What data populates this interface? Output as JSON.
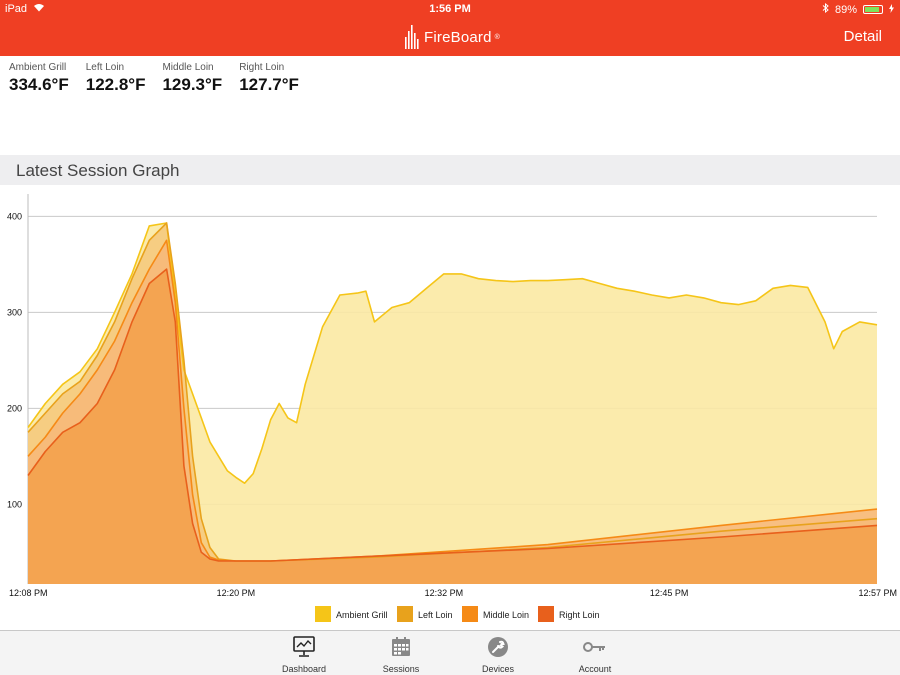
{
  "status_bar": {
    "device": "iPad",
    "time": "1:56 PM",
    "battery": "89%"
  },
  "header": {
    "brand": "FireBoard",
    "trademark": "®",
    "detail_label": "Detail",
    "color": "#ef3f23"
  },
  "probes": [
    {
      "label": "Ambient Grill",
      "value": "334.6°F"
    },
    {
      "label": "Left Loin",
      "value": "122.8°F"
    },
    {
      "label": "Middle Loin",
      "value": "129.3°F"
    },
    {
      "label": "Right Loin",
      "value": "127.7°F"
    }
  ],
  "section": {
    "title": "Latest Session Graph"
  },
  "chart_data": {
    "type": "area",
    "title": "",
    "xlabel": "",
    "ylabel": "",
    "x_unit": "minutes after 12:08 PM",
    "x_tick_labels": [
      "12:08 PM",
      "12:20 PM",
      "12:32 PM",
      "12:45 PM",
      "12:57 PM"
    ],
    "x_tick_values": [
      0,
      12,
      24,
      37,
      49
    ],
    "xlim": [
      0,
      49
    ],
    "y_ticks": [
      100,
      200,
      300,
      400
    ],
    "ylim": [
      17,
      417
    ],
    "grid": true,
    "legend_position": "bottom",
    "series": [
      {
        "name": "Ambient Grill",
        "color": "#f5c518",
        "fill": "#fbe9a3",
        "x": [
          0,
          1,
          2,
          3,
          4,
          5,
          6,
          7,
          8,
          9,
          10,
          10.5,
          11,
          11.5,
          12,
          12.5,
          13,
          13.5,
          14,
          14.5,
          15,
          15.5,
          16,
          17,
          18,
          19,
          19.5,
          20,
          21,
          22,
          23,
          24,
          25,
          26,
          27,
          28,
          29,
          30,
          31,
          32,
          33,
          34,
          35,
          36,
          37,
          38,
          39,
          40,
          41,
          42,
          43,
          44,
          45,
          46,
          46.5,
          47,
          48,
          49
        ],
        "y": [
          180,
          205,
          225,
          238,
          262,
          300,
          340,
          390,
          393,
          240,
          190,
          165,
          150,
          135,
          128,
          122,
          132,
          158,
          188,
          205,
          190,
          185,
          225,
          285,
          318,
          320,
          322,
          290,
          305,
          310,
          325,
          340,
          340,
          335,
          333,
          332,
          333,
          333,
          334,
          335,
          330,
          325,
          322,
          318,
          315,
          318,
          315,
          310,
          308,
          312,
          325,
          328,
          326,
          290,
          262,
          280,
          290,
          287
        ]
      },
      {
        "name": "Left Loin",
        "color": "#e8a21c",
        "fill": "#f5c87a",
        "x": [
          0,
          1,
          2,
          3,
          4,
          5,
          6,
          7,
          8,
          8.5,
          9,
          9.5,
          10,
          10.5,
          11,
          12,
          14,
          20,
          30,
          40,
          49
        ],
        "y": [
          175,
          195,
          215,
          228,
          255,
          290,
          335,
          375,
          393,
          330,
          250,
          150,
          85,
          55,
          43,
          41,
          41,
          45,
          55,
          72,
          85
        ]
      },
      {
        "name": "Middle Loin",
        "color": "#f58a16",
        "fill": "#f7b779",
        "x": [
          0,
          1,
          2,
          3,
          4,
          5,
          6,
          7,
          8,
          8.5,
          9,
          9.5,
          10,
          10.5,
          11,
          12,
          14,
          20,
          30,
          40,
          49
        ],
        "y": [
          150,
          170,
          195,
          215,
          240,
          270,
          310,
          345,
          375,
          310,
          200,
          110,
          60,
          45,
          42,
          41,
          41,
          46,
          58,
          78,
          95
        ]
      },
      {
        "name": "Right Loin",
        "color": "#e8601c",
        "fill": "#f3a04a",
        "x": [
          0,
          1,
          2,
          3,
          4,
          5,
          6,
          7,
          8,
          8.5,
          9,
          9.5,
          10,
          10.5,
          11,
          12,
          14,
          20,
          30,
          40,
          49
        ],
        "y": [
          130,
          155,
          175,
          185,
          205,
          240,
          290,
          330,
          345,
          290,
          140,
          80,
          50,
          43,
          41,
          41,
          41,
          46,
          54,
          66,
          78
        ]
      }
    ]
  },
  "tabs": [
    {
      "label": "Dashboard",
      "icon": "dashboard-monitor-icon"
    },
    {
      "label": "Sessions",
      "icon": "calendar-icon"
    },
    {
      "label": "Devices",
      "icon": "wrench-icon"
    },
    {
      "label": "Account",
      "icon": "key-icon"
    }
  ]
}
